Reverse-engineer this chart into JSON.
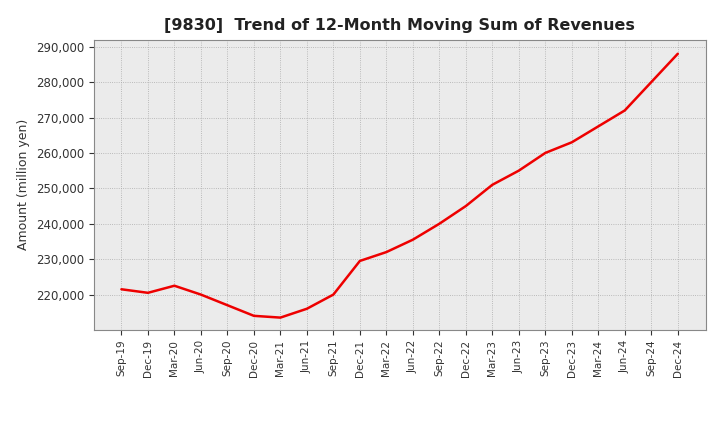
{
  "title": "[9830]  Trend of 12-Month Moving Sum of Revenues",
  "ylabel": "Amount (million yen)",
  "line_color": "#EE0000",
  "background_color": "#FFFFFF",
  "plot_bg_color": "#EBEBEB",
  "grid_color": "#AAAAAA",
  "ylim": [
    210000,
    292000
  ],
  "yticks": [
    220000,
    230000,
    240000,
    250000,
    260000,
    270000,
    280000,
    290000
  ],
  "labels": [
    "Sep-19",
    "Dec-19",
    "Mar-20",
    "Jun-20",
    "Sep-20",
    "Dec-20",
    "Mar-21",
    "Jun-21",
    "Sep-21",
    "Dec-21",
    "Mar-22",
    "Jun-22",
    "Sep-22",
    "Dec-22",
    "Mar-23",
    "Jun-23",
    "Sep-23",
    "Dec-23",
    "Mar-24",
    "Jun-24",
    "Sep-24",
    "Dec-24"
  ],
  "values": [
    221500,
    220500,
    222500,
    220000,
    217000,
    214000,
    213500,
    216000,
    220000,
    229500,
    232000,
    235500,
    240000,
    245000,
    251000,
    255000,
    260000,
    263000,
    267500,
    272000,
    280000,
    288000
  ]
}
